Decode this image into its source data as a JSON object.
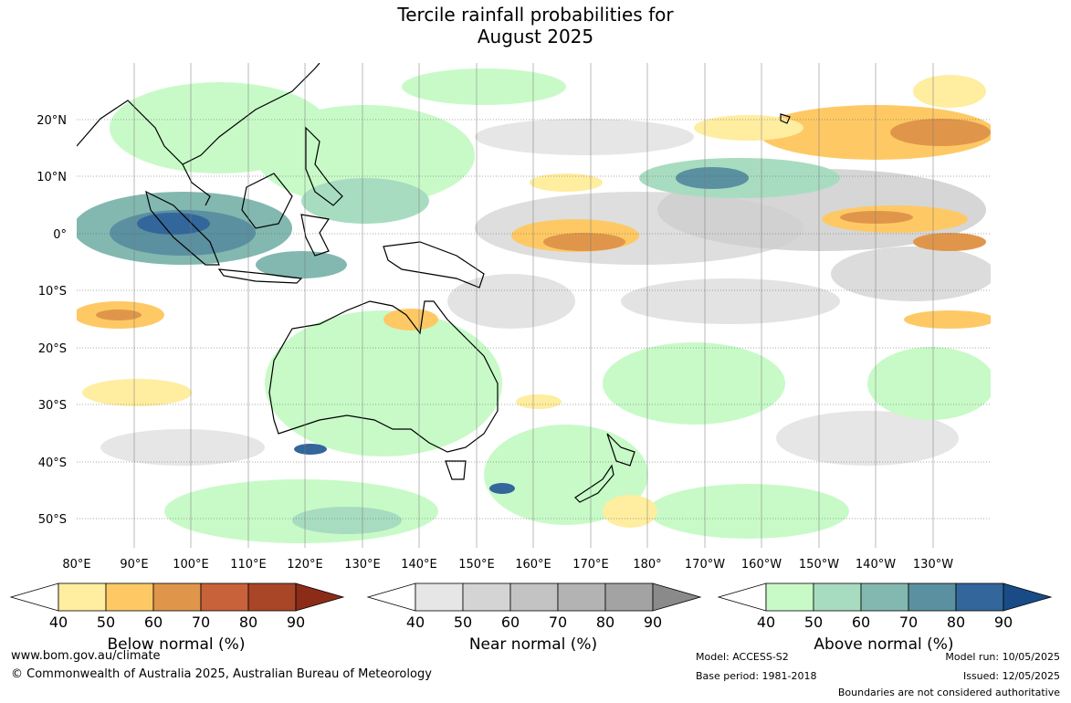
{
  "title_line1": "Tercile rainfall probabilities for",
  "title_line2": "August 2025",
  "lat_labels": [
    "20°N",
    "10°N",
    "0°",
    "10°S",
    "20°S",
    "30°S",
    "40°S",
    "50°S"
  ],
  "lon_labels": [
    "80°E",
    "90°E",
    "100°E",
    "110°E",
    "120°E",
    "130°E",
    "140°E",
    "150°E",
    "160°E",
    "170°E",
    "180°",
    "170°W",
    "160°W",
    "150°W",
    "140°W",
    "130°W"
  ],
  "legends": [
    {
      "title": "Below normal (%)",
      "ticks": [
        "40",
        "50",
        "60",
        "70",
        "80",
        "90"
      ],
      "colors": [
        "#ffeda0",
        "#fec965",
        "#e0964a",
        "#c8623a",
        "#a94628",
        "#8c2c18"
      ]
    },
    {
      "title": "Near normal (%)",
      "ticks": [
        "40",
        "50",
        "60",
        "70",
        "80",
        "90"
      ],
      "colors": [
        "#e6e6e6",
        "#d4d4d4",
        "#c3c3c3",
        "#b3b3b3",
        "#a3a3a3",
        "#8a8a8a"
      ]
    },
    {
      "title": "Above normal (%)",
      "ticks": [
        "40",
        "50",
        "60",
        "70",
        "80",
        "90"
      ],
      "colors": [
        "#c8fac8",
        "#a8dcc0",
        "#82b8b0",
        "#5a90a0",
        "#33669a",
        "#194c86"
      ]
    }
  ],
  "footer": {
    "website": "www.bom.gov.au/climate",
    "copyright": "© Commonwealth of Australia 2025, Australian Bureau of Meteorology",
    "model": "Model: ACCESS-S2",
    "base_period": "Base period: 1981-2018",
    "model_run": "Model run: 10/05/2025",
    "issued": "Issued: 12/05/2025",
    "disclaimer": "Boundaries are not considered authoritative"
  }
}
